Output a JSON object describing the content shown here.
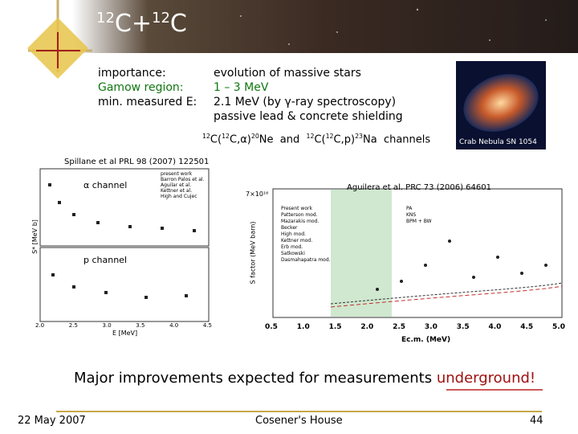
{
  "header": {
    "title": [
      "12",
      "C+",
      "12",
      "C"
    ]
  },
  "info": {
    "labels": [
      "importance:",
      "Gamow region:",
      "min. measured E:"
    ],
    "values": [
      "evolution of massive stars",
      "1 – 3 MeV",
      "2.1 MeV (by γ-ray spectroscopy)",
      "passive lead & concrete shielding"
    ]
  },
  "channels": [
    "12",
    "C(",
    "12",
    "C,α)",
    "20",
    "Ne",
    "and",
    "12",
    "C(",
    "12",
    "C,p)",
    "23",
    "Na",
    "channels"
  ],
  "image": {
    "caption": "Crab Nebula SN 1054"
  },
  "left_plot": {
    "reference": "Spillane et al PRL 98 (2007) 122501",
    "alpha_label": "α channel",
    "p_label": "p channel",
    "legend": [
      "present work",
      "Barron Palos et al.",
      "Aguilar et al.",
      "Kettner et al.",
      "High and Cujec"
    ],
    "y_label": "S* [MeV b]",
    "x_label": "E [MeV]",
    "xticks": [
      "2.0",
      "2.5",
      "3.0",
      "3.5",
      "4.0",
      "4.5"
    ]
  },
  "right_plot": {
    "reference": "Aguilera et al. PRC 73 (2006) 64601",
    "y_top": "7×10¹⁶",
    "legend": [
      "Present work",
      "Patterson mod.",
      "Mazarakis mod.",
      "Becker",
      "High mod.",
      "Kettner mod.",
      "Erb mod.",
      "Satkowski",
      "Dasmahapatra mod."
    ],
    "legend2": [
      "PA",
      "KNS",
      "BPM + BW"
    ],
    "y_label": "S factor (MeV barn)",
    "x_label": "Ec.m. (MeV)",
    "xticks": [
      "0.5",
      "1.0",
      "1.5",
      "2.0",
      "2.5",
      "3.0",
      "3.5",
      "4.0",
      "4.5",
      "5.0"
    ]
  },
  "conclusion": {
    "text": "Major improvements expected for measurements",
    "emphasis": "underground!"
  },
  "footer": {
    "date": "22 May 2007",
    "venue": "Cosener's House",
    "page": "44"
  }
}
